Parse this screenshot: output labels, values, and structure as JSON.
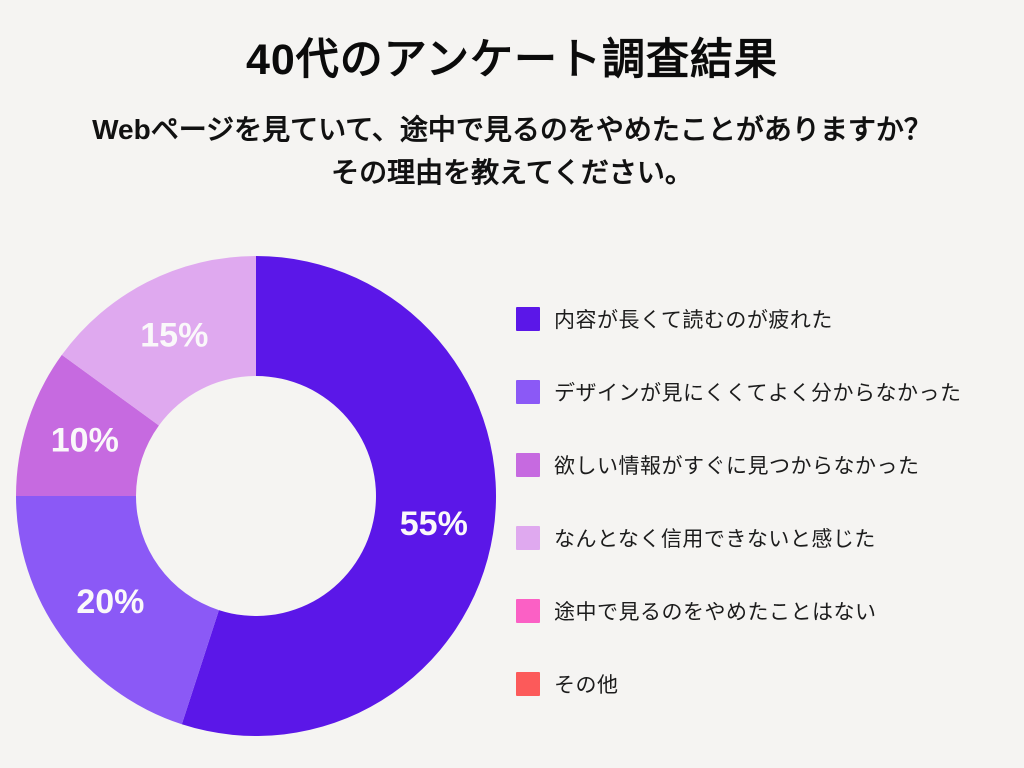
{
  "page": {
    "background": "#F5F4F2",
    "title": "40代のアンケート調査結果",
    "subtitle_line1": "Webページを見ていて、途中で見るのをやめたことがありますか？",
    "subtitle_line2": "その理由を教えてください。"
  },
  "chart_data": {
    "type": "pie",
    "donut": true,
    "hole_ratio": 0.5,
    "start_angle_deg": 0,
    "direction": "clockwise",
    "legend_position": "right",
    "title": "40代のアンケート調査結果",
    "subtitle": "Webページを見ていて、途中で見るのをやめたことがありますか？その理由を教えてください。",
    "categories": [
      "内容が長くて読むのが疲れた",
      "デザインが見にくくてよく分からなかった",
      "欲しい情報がすぐに見つからなかった",
      "なんとなく信用できないと感じた",
      "途中で見るのをやめたことはない",
      "その他"
    ],
    "values": [
      55,
      20,
      10,
      15,
      0,
      0
    ],
    "colors": [
      "#5B17E8",
      "#8B59F6",
      "#C66AE0",
      "#DFA9EF",
      "#FB60C5",
      "#FC5A5A"
    ],
    "slice_labels": [
      "55%",
      "20%",
      "10%",
      "15%",
      "",
      ""
    ],
    "slice_label_color": "#FAF8FA"
  }
}
